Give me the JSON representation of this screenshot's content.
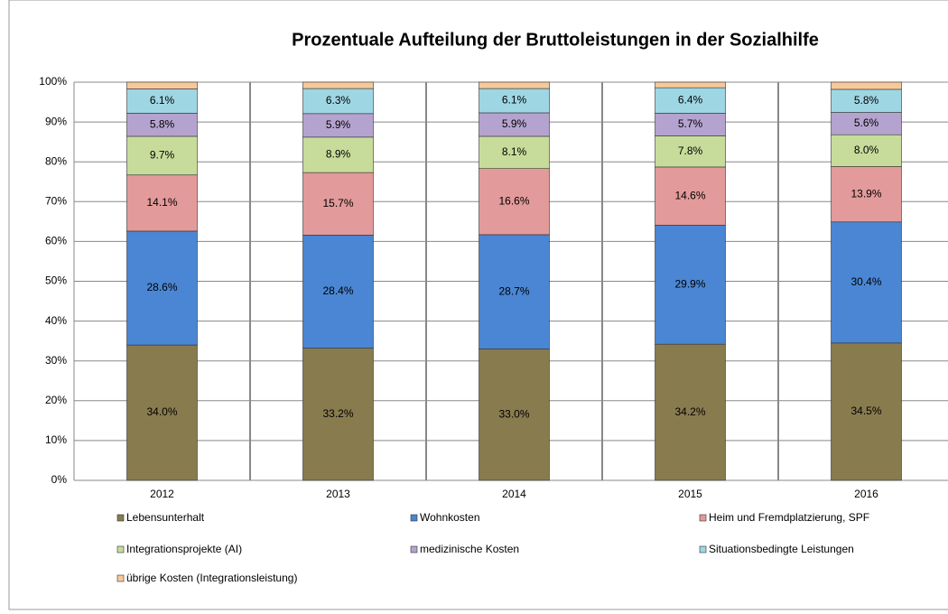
{
  "chart_data": {
    "type": "stacked_bar",
    "title": "Prozentuale Aufteilung der Bruttoleistungen in der Sozialhilfe",
    "categories": [
      "2012",
      "2013",
      "2014",
      "2015",
      "2016"
    ],
    "series": [
      {
        "name": "Lebensunterhalt",
        "color": "#887b4e",
        "values": [
          34.0,
          33.2,
          33.0,
          34.2,
          34.5
        ],
        "value_labels": [
          "34.0%",
          "33.2%",
          "33.0%",
          "34.2%",
          "34.5%"
        ]
      },
      {
        "name": "Wohnkosten",
        "color": "#4a86d4",
        "values": [
          28.6,
          28.4,
          28.7,
          29.9,
          30.4
        ],
        "value_labels": [
          "28.6%",
          "28.4%",
          "28.7%",
          "29.9%",
          "30.4%"
        ]
      },
      {
        "name": "Heim und Fremdplatzierung, SPF",
        "color": "#e39a9a",
        "values": [
          14.1,
          15.7,
          16.6,
          14.6,
          13.9
        ],
        "value_labels": [
          "14.1%",
          "15.7%",
          "16.6%",
          "14.6%",
          "13.9%"
        ]
      },
      {
        "name": "Integrationsprojekte (AI)",
        "color": "#c7dc9b",
        "values": [
          9.7,
          8.9,
          8.1,
          7.8,
          8.0
        ],
        "value_labels": [
          "9.7%",
          "8.9%",
          "8.1%",
          "7.8%",
          "8.0%"
        ]
      },
      {
        "name": "medizinische Kosten",
        "color": "#b5a3cf",
        "values": [
          5.8,
          5.9,
          5.9,
          5.7,
          5.6
        ],
        "value_labels": [
          "5.8%",
          "5.9%",
          "5.9%",
          "5.7%",
          "5.6%"
        ]
      },
      {
        "name": "Situationsbedingte Leistungen",
        "color": "#9fd6e3",
        "values": [
          6.1,
          6.3,
          6.1,
          6.4,
          5.8
        ],
        "value_labels": [
          "6.1%",
          "6.3%",
          "6.1%",
          "6.4%",
          "5.8%"
        ]
      },
      {
        "name": "übrige Kosten (Integrationsleistung)",
        "color": "#f7c99a",
        "values": [
          1.7,
          1.6,
          1.6,
          1.4,
          1.8
        ]
      }
    ],
    "ylim": [
      0,
      100
    ],
    "yticks": [
      {
        "value": 0,
        "label": "0%"
      },
      {
        "value": 10,
        "label": "10%"
      },
      {
        "value": 20,
        "label": "20%"
      },
      {
        "value": 30,
        "label": "30%"
      },
      {
        "value": 40,
        "label": "40%"
      },
      {
        "value": 50,
        "label": "50%"
      },
      {
        "value": 60,
        "label": "60%"
      },
      {
        "value": 70,
        "label": "70%"
      },
      {
        "value": 80,
        "label": "80%"
      },
      {
        "value": 90,
        "label": "90%"
      },
      {
        "value": 100,
        "label": "100%"
      }
    ],
    "grid": true
  }
}
